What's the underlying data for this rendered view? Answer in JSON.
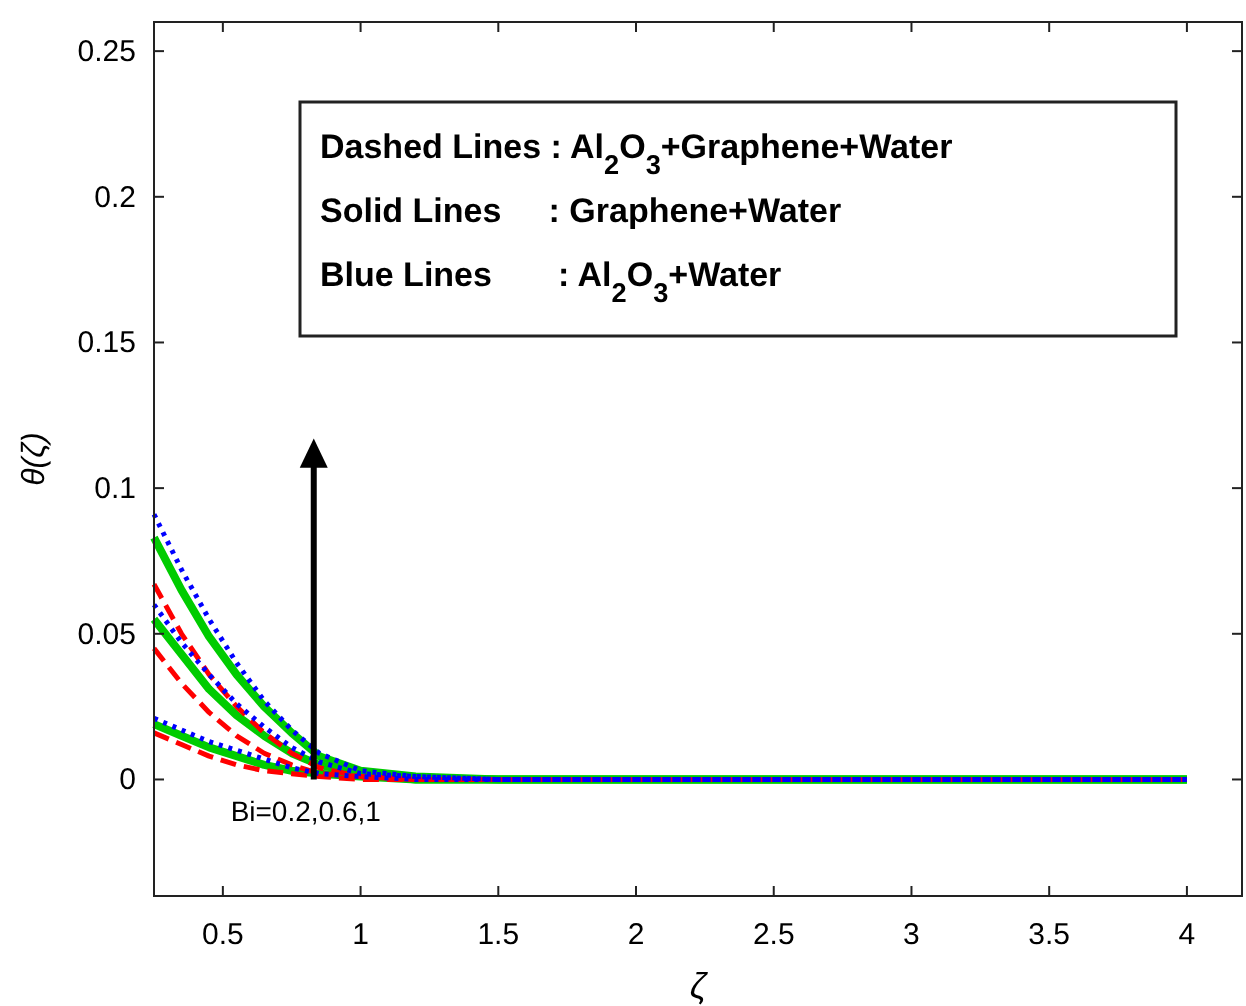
{
  "chart_data": {
    "type": "line",
    "xlabel": "ζ",
    "ylabel": "θ(ζ)",
    "x": [
      0.25,
      0.35,
      0.45,
      0.55,
      0.65,
      0.75,
      0.85,
      1.0,
      1.2,
      1.5,
      2,
      3,
      4
    ],
    "series": [
      {
        "color": "#ff0000",
        "line_style": "dashed",
        "values": [
          0.067,
          0.05,
          0.036,
          0.025,
          0.016,
          0.009,
          0.004,
          0.001,
          0,
          0,
          0,
          0,
          0
        ]
      },
      {
        "color": "#00cc00",
        "line_style": "solid",
        "values": [
          0.083,
          0.065,
          0.049,
          0.036,
          0.025,
          0.016,
          0.008,
          0.003,
          0.001,
          0,
          0,
          0,
          0
        ]
      },
      {
        "color": "#0000ff",
        "line_style": "dotted",
        "values": [
          0.091,
          0.072,
          0.055,
          0.04,
          0.027,
          0.017,
          0.009,
          0.003,
          0.001,
          0,
          0,
          0,
          0
        ]
      },
      {
        "color": "#ff0000",
        "line_style": "dashed",
        "values": [
          0.045,
          0.033,
          0.023,
          0.015,
          0.009,
          0.005,
          0.002,
          0.001,
          0,
          0,
          0,
          0,
          0
        ]
      },
      {
        "color": "#00cc00",
        "line_style": "solid",
        "values": [
          0.055,
          0.043,
          0.031,
          0.022,
          0.015,
          0.009,
          0.005,
          0.002,
          0,
          0,
          0,
          0,
          0
        ]
      },
      {
        "color": "#0000ff",
        "line_style": "dotted",
        "values": [
          0.06,
          0.047,
          0.036,
          0.026,
          0.018,
          0.011,
          0.006,
          0.002,
          0.001,
          0,
          0,
          0,
          0
        ]
      },
      {
        "color": "#ff0000",
        "line_style": "dashed",
        "values": [
          0.016,
          0.012,
          0.008,
          0.005,
          0.003,
          0.002,
          0.001,
          0,
          0,
          0,
          0,
          0,
          0
        ]
      },
      {
        "color": "#00cc00",
        "line_style": "solid",
        "values": [
          0.019,
          0.015,
          0.011,
          0.008,
          0.005,
          0.003,
          0.002,
          0.001,
          0,
          0,
          0,
          0,
          0
        ]
      },
      {
        "color": "#0000ff",
        "line_style": "dotted",
        "values": [
          0.021,
          0.017,
          0.013,
          0.01,
          0.007,
          0.004,
          0.002,
          0.001,
          0,
          0,
          0,
          0,
          0
        ]
      }
    ],
    "annotations": [
      "Dashed Lines : Al$_{2}$O$_{3}$+Graphene+Water",
      "Solid Lines     : Graphene+Water",
      "Blue Lines       : Al$_{2}$O$_{3}$+Water",
      {
        "text": "Bi=0.2,0.6,1",
        "x": 0.83,
        "y": 0
      }
    ],
    "xlim": [
      0.25,
      4.2
    ],
    "ylim": [
      -0.04,
      0.26
    ],
    "xticks": [
      0.5,
      1,
      1.5,
      2,
      2.5,
      3,
      3.5,
      4
    ],
    "yticks": [
      0,
      0.05,
      0.1,
      0.15,
      0.2,
      0.25
    ],
    "grid": false
  }
}
